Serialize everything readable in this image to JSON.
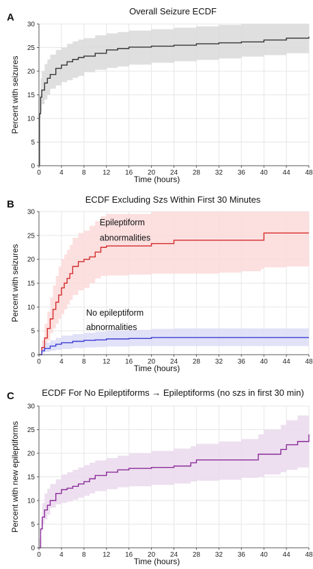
{
  "chart_data": [
    {
      "type": "line",
      "panel_label": "A",
      "title": "Overall Seizure ECDF",
      "xlabel": "Time (hours)",
      "ylabel": "Percent with seizures",
      "xlim": [
        0,
        48
      ],
      "ylim": [
        0,
        30
      ],
      "x_ticks": [
        0,
        4,
        8,
        12,
        16,
        20,
        24,
        28,
        32,
        36,
        40,
        44,
        48
      ],
      "y_ticks": [
        0,
        5,
        10,
        15,
        20,
        25,
        30
      ],
      "grid": true,
      "annotations": [],
      "series": [
        {
          "color": "#333333",
          "band_color": "#d9d9d9",
          "x": [
            0,
            0.1,
            0.3,
            0.5,
            1,
            1.5,
            2,
            3,
            4,
            5,
            6,
            7,
            8,
            10,
            12,
            14,
            16,
            20,
            24,
            28,
            32,
            36,
            40,
            44,
            48
          ],
          "y": [
            0,
            11,
            14.5,
            16,
            17.5,
            18.5,
            19.3,
            20.6,
            21.3,
            22,
            22.5,
            22.9,
            23.2,
            23.8,
            24.5,
            24.8,
            25.1,
            25.3,
            25.5,
            25.8,
            26,
            26.2,
            26.6,
            27,
            27.3
          ],
          "lower": [
            0,
            7,
            10,
            11.5,
            13,
            14,
            15,
            16.3,
            17,
            17.7,
            18.1,
            18.6,
            19,
            19.8,
            20.3,
            20.7,
            21,
            21.4,
            21.8,
            22.1,
            22.4,
            22.7,
            23.1,
            23.4,
            23.8
          ],
          "upper": [
            0,
            15,
            18.5,
            20,
            21.5,
            22.5,
            23.5,
            24.5,
            25,
            25.8,
            26.3,
            26.7,
            27,
            27.6,
            28,
            28.3,
            28.6,
            28.9,
            29.2,
            29.5,
            29.8,
            30,
            30,
            30,
            30
          ]
        }
      ]
    },
    {
      "type": "line",
      "panel_label": "B",
      "title": "ECDF Excluding Szs Within First 30 Minutes",
      "xlabel": "Time (hours)",
      "ylabel": "Percent with seizures",
      "xlim": [
        0,
        48
      ],
      "ylim": [
        0,
        30
      ],
      "x_ticks": [
        0,
        4,
        8,
        12,
        16,
        20,
        24,
        28,
        32,
        36,
        40,
        44,
        48
      ],
      "y_ticks": [
        0,
        5,
        10,
        15,
        20,
        25,
        30
      ],
      "grid": true,
      "annotations": [
        {
          "text": "Epileptiform",
          "x": 10.8,
          "y": 27.1
        },
        {
          "text": "abnormalities",
          "x": 10.8,
          "y": 23.9
        },
        {
          "text": "No epileptiform",
          "x": 8.4,
          "y": 8.2
        },
        {
          "text": "abnormalities",
          "x": 8.4,
          "y": 5.2
        }
      ],
      "series": [
        {
          "color": "#d42a2a",
          "band_color": "#fcd9d9",
          "x": [
            0,
            0.5,
            1,
            1.5,
            2,
            2.5,
            3,
            3.5,
            4,
            4.5,
            5,
            5.5,
            6,
            7,
            8,
            9,
            10,
            11,
            12,
            16,
            20,
            24,
            28,
            32,
            36,
            39.5,
            40,
            44,
            48
          ],
          "y": [
            0,
            1.5,
            3.5,
            5.5,
            7.5,
            9.5,
            11,
            12.5,
            14,
            15,
            16,
            17,
            18.5,
            19.5,
            20,
            20.5,
            21.5,
            22.5,
            22.8,
            22.8,
            23.3,
            24,
            24,
            24,
            24,
            24,
            25.5,
            25.5,
            25.5
          ],
          "lower": [
            0,
            0.2,
            1,
            2,
            3,
            4.5,
            5.5,
            6.5,
            7.5,
            8.5,
            9.5,
            10.5,
            11.5,
            12.5,
            13.5,
            14,
            15,
            16,
            16.5,
            16.6,
            16.8,
            17,
            17,
            17,
            17.2,
            17.5,
            18,
            18.3,
            18.5
          ],
          "upper": [
            0,
            3,
            6.5,
            9,
            12,
            14.5,
            16.5,
            18.5,
            20,
            21,
            22,
            23,
            24.5,
            25.5,
            26,
            27,
            28,
            29,
            29.5,
            29.5,
            30,
            30,
            30,
            30,
            30,
            30,
            30,
            30,
            30
          ]
        },
        {
          "color": "#3a3ad4",
          "band_color": "#dcdcf7",
          "x": [
            0,
            0.5,
            1,
            2,
            3,
            4,
            6,
            8,
            10,
            12,
            16,
            20,
            24,
            28,
            32,
            36,
            40,
            44,
            48
          ],
          "y": [
            0,
            0.8,
            1.3,
            1.8,
            2.2,
            2.5,
            2.8,
            3,
            3.1,
            3.3,
            3.4,
            3.6,
            3.6,
            3.6,
            3.6,
            3.6,
            3.6,
            3.6,
            3.6
          ],
          "lower": [
            0,
            0.1,
            0.3,
            0.6,
            0.8,
            1,
            1.2,
            1.4,
            1.5,
            1.6,
            1.7,
            1.8,
            1.8,
            1.8,
            1.8,
            1.8,
            1.8,
            1.8,
            1.8
          ],
          "upper": [
            0,
            1.8,
            2.5,
            3,
            3.5,
            4,
            4.3,
            4.6,
            4.8,
            5,
            5.2,
            5.4,
            5.5,
            5.5,
            5.5,
            5.5,
            5.5,
            5.5,
            5.5
          ]
        }
      ]
    },
    {
      "type": "line",
      "panel_label": "C",
      "title": "ECDF For No Epileptiforms → Epileptiforms (no szs in first 30 min)",
      "xlabel": "Time (hours)",
      "ylabel": "Percent with new epileptiforms",
      "xlim": [
        0,
        48
      ],
      "ylim": [
        0,
        30
      ],
      "x_ticks": [
        0,
        4,
        8,
        12,
        16,
        20,
        24,
        28,
        32,
        36,
        40,
        44,
        48
      ],
      "y_ticks": [
        0,
        5,
        10,
        15,
        20,
        25,
        30
      ],
      "grid": true,
      "annotations": [],
      "series": [
        {
          "color": "#8a2a9a",
          "band_color": "#ead9ec",
          "x": [
            0,
            0.3,
            0.6,
            1,
            1.5,
            2,
            3,
            4,
            5,
            6,
            7,
            8,
            9,
            10,
            12,
            14,
            16,
            20,
            24,
            27,
            28,
            32,
            36,
            39,
            40,
            43,
            44,
            46,
            48
          ],
          "y": [
            0,
            4,
            6.5,
            8,
            9,
            10,
            11.5,
            12.3,
            12.6,
            13,
            13.5,
            14,
            14.6,
            15.3,
            16,
            16.5,
            16.8,
            17,
            17.3,
            18,
            18.6,
            18.6,
            18.6,
            19.8,
            19.8,
            20.8,
            21.8,
            22.5,
            24
          ],
          "lower": [
            0,
            2,
            3.5,
            5,
            6,
            7,
            8.5,
            9.2,
            9.5,
            9.8,
            10.2,
            10.6,
            11,
            11.5,
            12,
            12.4,
            12.8,
            13,
            13.3,
            13.6,
            14,
            14.2,
            14.4,
            14.8,
            15,
            15.5,
            16,
            16.5,
            17
          ],
          "upper": [
            0,
            6,
            9.5,
            11.5,
            12.5,
            13.5,
            14.5,
            15.5,
            16,
            16.5,
            17,
            17.5,
            18,
            18.5,
            19,
            19.5,
            20,
            20.5,
            21,
            21.5,
            22,
            22.5,
            23,
            24,
            25,
            26,
            27,
            28,
            28.5
          ]
        }
      ]
    }
  ]
}
